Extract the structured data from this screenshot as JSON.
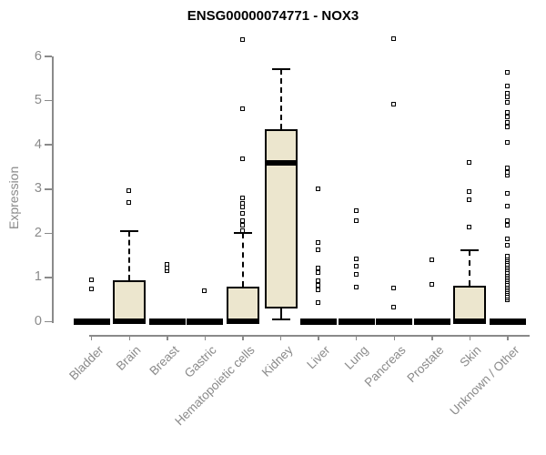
{
  "chart_data": {
    "type": "box",
    "title": "ENSG00000074771 - NOX3",
    "ylabel": "Expression",
    "ylim": [
      0,
      6
    ],
    "yticks": [
      0,
      1,
      2,
      3,
      4,
      5,
      6
    ],
    "grid": false,
    "legend": "none",
    "colors": {
      "box_fill": "#ECE6CE",
      "box_line": "#000000",
      "axis": "#8A8A8A",
      "title": "#000000"
    },
    "categories": [
      "Bladder",
      "Brain",
      "Breast",
      "Gastric",
      "Hematopoietic cells",
      "Kidney",
      "Liver",
      "Lung",
      "Pancreas",
      "Prostate",
      "Skin",
      "Unknown / Other"
    ],
    "boxes": [
      {
        "label": "Bladder",
        "whislo": 0,
        "q1": 0,
        "med": 0,
        "q3": 0,
        "whishi": 0,
        "outliers": [
          0.74,
          0.94
        ]
      },
      {
        "label": "Brain",
        "whislo": 0,
        "q1": 0,
        "med": 0.02,
        "q3": 0.93,
        "whishi": 2.05,
        "outliers": [
          2.68,
          2.95
        ]
      },
      {
        "label": "Breast",
        "whislo": 0,
        "q1": 0,
        "med": 0,
        "q3": 0,
        "whishi": 0,
        "outliers": [
          1.14,
          1.21,
          1.28
        ]
      },
      {
        "label": "Gastric",
        "whislo": 0,
        "q1": 0,
        "med": 0,
        "q3": 0,
        "whishi": 0,
        "outliers": [
          0.69
        ]
      },
      {
        "label": "Hematopoietic cells",
        "whislo": 0,
        "q1": 0,
        "med": 0.02,
        "q3": 0.8,
        "whishi": 2.0,
        "outliers": [
          2.05,
          2.17,
          2.27,
          2.44,
          2.58,
          2.66,
          2.79,
          3.67,
          4.8,
          6.37
        ]
      },
      {
        "label": "Kidney",
        "whislo": 0.05,
        "q1": 0.3,
        "med": 3.6,
        "q3": 4.35,
        "whishi": 5.72,
        "outliers": []
      },
      {
        "label": "Liver",
        "whislo": 0,
        "q1": 0,
        "med": 0,
        "q3": 0,
        "whishi": 0,
        "outliers": [
          0.42,
          0.71,
          0.82,
          0.91,
          1.1,
          1.2,
          1.61,
          1.78,
          3.0
        ]
      },
      {
        "label": "Lung",
        "whislo": 0,
        "q1": 0,
        "med": 0,
        "q3": 0,
        "whishi": 0,
        "outliers": [
          0.78,
          1.07,
          1.25,
          1.41,
          2.28,
          2.51
        ]
      },
      {
        "label": "Pancreas",
        "whislo": 0,
        "q1": 0,
        "med": 0,
        "q3": 0,
        "whishi": 0,
        "outliers": [
          0.32,
          0.76,
          4.9,
          6.4
        ]
      },
      {
        "label": "Prostate",
        "whislo": 0,
        "q1": 0,
        "med": 0,
        "q3": 0,
        "whishi": 0,
        "outliers": [
          0.84,
          1.39
        ]
      },
      {
        "label": "Skin",
        "whislo": 0,
        "q1": 0,
        "med": 0.02,
        "q3": 0.82,
        "whishi": 1.61,
        "outliers": [
          2.13,
          2.75,
          2.93,
          3.59
        ]
      },
      {
        "label": "Unknown / Other",
        "whislo": 0,
        "q1": 0,
        "med": 0,
        "q3": 0,
        "whishi": 0,
        "outliers": [
          0.48,
          0.53,
          0.57,
          0.62,
          0.66,
          0.71,
          0.75,
          0.8,
          0.84,
          0.89,
          0.93,
          0.98,
          1.02,
          1.07,
          1.11,
          1.16,
          1.2,
          1.25,
          1.29,
          1.34,
          1.38,
          1.43,
          1.47,
          1.72,
          1.86,
          2.17,
          2.27,
          2.6,
          2.89,
          3.3,
          3.36,
          3.47,
          4.04,
          4.39,
          4.5,
          4.63,
          4.72,
          4.95,
          5.07,
          5.15,
          5.32,
          5.63
        ]
      }
    ]
  }
}
